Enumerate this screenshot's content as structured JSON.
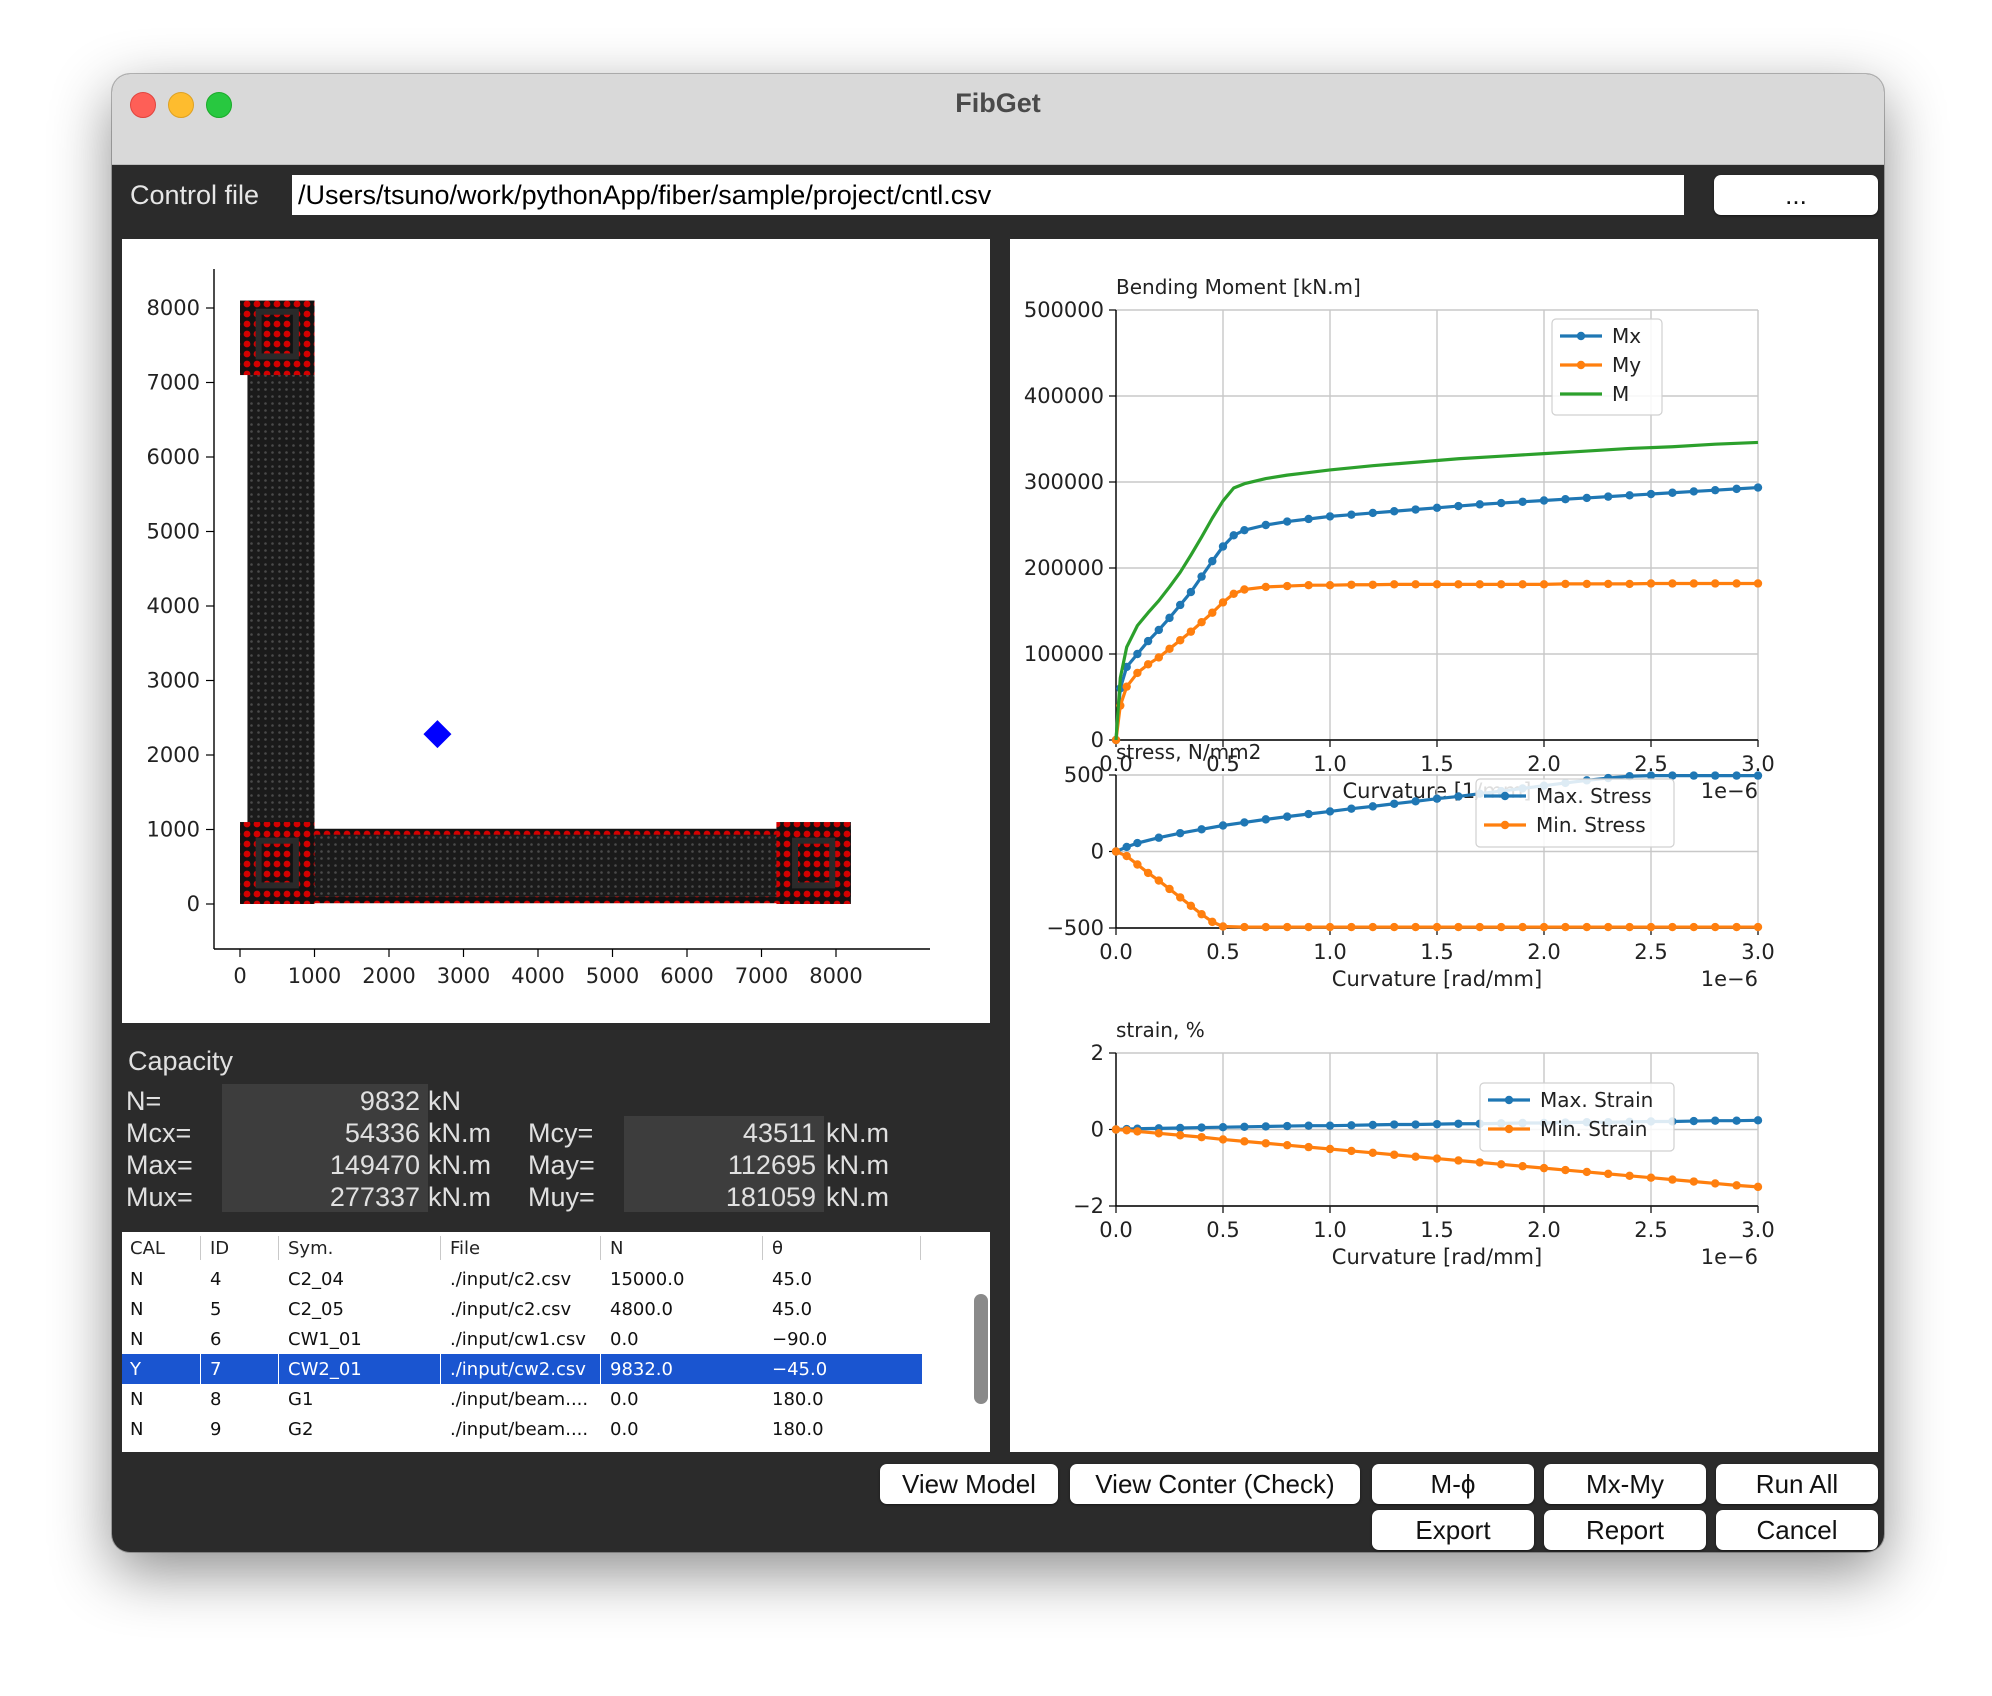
{
  "window": {
    "title": "FibGet"
  },
  "control": {
    "label": "Control file",
    "path": "/Users/tsuno/work/pythonApp/fiber/sample/project/cntl.csv",
    "browse_label": "..."
  },
  "model_plot": {
    "x_ticks": [
      "0",
      "1000",
      "2000",
      "3000",
      "4000",
      "5000",
      "6000",
      "7000",
      "8000"
    ],
    "y_ticks": [
      "0",
      "1000",
      "2000",
      "3000",
      "4000",
      "5000",
      "6000",
      "7000",
      "8000"
    ],
    "centroid": {
      "x": 2650,
      "y": 2280
    },
    "colors": {
      "concrete": "#111111",
      "rebar": "#d40000",
      "centroid": "#0000ff"
    }
  },
  "capacity": {
    "title": "Capacity",
    "n_label": "N=",
    "n_value": "9832",
    "n_unit": "kN",
    "mcx_label": "Mcx=",
    "mcx_value": "54336",
    "mcx_unit": "kN.m",
    "max_label": "Max=",
    "max_value": "149470",
    "max_unit": "kN.m",
    "mux_label": "Mux=",
    "mux_value": "277337",
    "mux_unit": "kN.m",
    "mcy_label": "Mcy=",
    "mcy_value": "43511",
    "mcy_unit": "kN.m",
    "may_label": "May=",
    "may_value": "112695",
    "may_unit": "kN.m",
    "muy_label": "Muy=",
    "muy_value": "181059",
    "muy_unit": "kN.m"
  },
  "table": {
    "headers": [
      "CAL",
      "ID",
      "Sym.",
      "File",
      "N",
      "θ"
    ],
    "rows": [
      [
        "N",
        "4",
        "C2_04",
        "./input/c2.csv",
        "15000.0",
        "45.0"
      ],
      [
        "N",
        "5",
        "C2_05",
        "./input/c2.csv",
        "4800.0",
        "45.0"
      ],
      [
        "N",
        "6",
        "CW1_01",
        "./input/cw1.csv",
        "0.0",
        "−90.0"
      ],
      [
        "Y",
        "7",
        "CW2_01",
        "./input/cw2.csv",
        "9832.0",
        "−45.0"
      ],
      [
        "N",
        "8",
        "G1",
        "./input/beam....",
        "0.0",
        "180.0"
      ],
      [
        "N",
        "9",
        "G2",
        "./input/beam....",
        "0.0",
        "180.0"
      ]
    ],
    "selected_index": 3
  },
  "buttons": {
    "view_model": "View Model",
    "view_conter": "View Conter (Check)",
    "m_phi": "M-ϕ",
    "mx_my": "Mx-My",
    "run_all": "Run All",
    "export": "Export",
    "report": "Report",
    "cancel": "Cancel"
  },
  "chart_data": [
    {
      "type": "line",
      "title": "Bending Moment [kN.m]",
      "xlabel": "Curvature [1/mm]",
      "x_offset_text": "1e−6",
      "xlim": [
        0,
        3.0
      ],
      "ylim": [
        0,
        500000
      ],
      "x_ticks": [
        "0.0",
        "0.5",
        "1.0",
        "1.5",
        "2.0",
        "2.5",
        "3.0"
      ],
      "y_ticks": [
        "0",
        "100000",
        "200000",
        "300000",
        "400000",
        "500000"
      ],
      "grid": true,
      "legend": "top-right",
      "series": [
        {
          "name": "Mx",
          "color": "#1f77b4",
          "markers": true,
          "x": [
            0,
            0.02,
            0.05,
            0.1,
            0.15,
            0.2,
            0.25,
            0.3,
            0.35,
            0.4,
            0.45,
            0.5,
            0.55,
            0.6,
            0.7,
            0.8,
            0.9,
            1.0,
            1.1,
            1.2,
            1.3,
            1.4,
            1.5,
            1.6,
            1.7,
            1.8,
            1.9,
            2.0,
            2.1,
            2.2,
            2.3,
            2.4,
            2.5,
            2.6,
            2.7,
            2.8,
            2.9,
            3.0
          ],
          "y": [
            0,
            60000,
            85000,
            100000,
            115000,
            128000,
            142000,
            157000,
            172000,
            190000,
            208000,
            225000,
            238000,
            244000,
            250000,
            254000,
            257000,
            260000,
            262000,
            264000,
            266000,
            268000,
            270000,
            272000,
            274000,
            275500,
            277000,
            278500,
            280000,
            281500,
            283000,
            284500,
            286000,
            287500,
            289000,
            290500,
            292000,
            293500
          ]
        },
        {
          "name": "My",
          "color": "#ff7f0e",
          "markers": true,
          "x": [
            0,
            0.02,
            0.05,
            0.1,
            0.15,
            0.2,
            0.25,
            0.3,
            0.35,
            0.4,
            0.45,
            0.5,
            0.55,
            0.6,
            0.7,
            0.8,
            0.9,
            1.0,
            1.1,
            1.2,
            1.3,
            1.4,
            1.5,
            1.6,
            1.7,
            1.8,
            1.9,
            2.0,
            2.1,
            2.2,
            2.3,
            2.4,
            2.5,
            2.6,
            2.7,
            2.8,
            2.9,
            3.0
          ],
          "y": [
            0,
            40000,
            62000,
            78000,
            88000,
            96000,
            106000,
            116000,
            126000,
            137000,
            148000,
            160000,
            170000,
            175000,
            178000,
            179000,
            180000,
            180000,
            180500,
            180500,
            181000,
            181000,
            181000,
            181000,
            181000,
            181000,
            181000,
            181000,
            181500,
            181500,
            181500,
            181500,
            182000,
            182000,
            182000,
            182000,
            182000,
            182000
          ]
        },
        {
          "name": "M",
          "color": "#2ca02c",
          "markers": false,
          "x": [
            0,
            0.02,
            0.05,
            0.1,
            0.15,
            0.2,
            0.25,
            0.3,
            0.35,
            0.4,
            0.45,
            0.5,
            0.55,
            0.6,
            0.7,
            0.8,
            0.9,
            1.0,
            1.2,
            1.4,
            1.6,
            1.8,
            2.0,
            2.2,
            2.4,
            2.6,
            2.8,
            3.0
          ],
          "y": [
            0,
            72000,
            108000,
            133000,
            148000,
            162000,
            178000,
            195000,
            215000,
            236000,
            258000,
            278000,
            293000,
            298000,
            304000,
            308000,
            311000,
            314000,
            319000,
            323000,
            327000,
            330000,
            333000,
            336000,
            339000,
            341000,
            344000,
            346000
          ]
        }
      ]
    },
    {
      "type": "line",
      "title": "stress, N/mm2",
      "xlabel": "Curvature [rad/mm]",
      "x_offset_text": "1e−6",
      "xlim": [
        0,
        3.0
      ],
      "ylim": [
        -500,
        500
      ],
      "x_ticks": [
        "0.0",
        "0.5",
        "1.0",
        "1.5",
        "2.0",
        "2.5",
        "3.0"
      ],
      "y_ticks": [
        "−500",
        "0",
        "500"
      ],
      "grid": true,
      "legend": "top-right",
      "series": [
        {
          "name": "Max. Stress",
          "color": "#1f77b4",
          "markers": true,
          "x": [
            0,
            0.05,
            0.1,
            0.2,
            0.3,
            0.4,
            0.5,
            0.6,
            0.7,
            0.8,
            0.9,
            1.0,
            1.1,
            1.2,
            1.3,
            1.4,
            1.5,
            1.6,
            1.7,
            1.8,
            1.9,
            2.0,
            2.1,
            2.2,
            2.3,
            2.4,
            2.5,
            2.6,
            2.7,
            2.8,
            2.9,
            3.0
          ],
          "y": [
            0,
            30,
            55,
            90,
            120,
            145,
            170,
            190,
            210,
            228,
            245,
            262,
            280,
            295,
            312,
            328,
            345,
            360,
            378,
            395,
            412,
            430,
            448,
            465,
            480,
            492,
            496,
            496,
            496,
            496,
            496,
            496
          ]
        },
        {
          "name": "Min. Stress",
          "color": "#ff7f0e",
          "markers": true,
          "x": [
            0,
            0.05,
            0.1,
            0.15,
            0.2,
            0.25,
            0.3,
            0.35,
            0.4,
            0.45,
            0.5,
            0.6,
            0.7,
            0.8,
            0.9,
            1.0,
            1.1,
            1.2,
            1.3,
            1.4,
            1.5,
            1.6,
            1.7,
            1.8,
            1.9,
            2.0,
            2.1,
            2.2,
            2.3,
            2.4,
            2.5,
            2.6,
            2.7,
            2.8,
            2.9,
            3.0
          ],
          "y": [
            0,
            -30,
            -85,
            -140,
            -190,
            -245,
            -300,
            -355,
            -410,
            -460,
            -490,
            -494,
            -494,
            -494,
            -494,
            -494,
            -494,
            -494,
            -494,
            -494,
            -494,
            -494,
            -494,
            -494,
            -494,
            -494,
            -494,
            -494,
            -494,
            -494,
            -494,
            -494,
            -494,
            -494,
            -494,
            -494
          ]
        }
      ]
    },
    {
      "type": "line",
      "title": "strain, %",
      "xlabel": "Curvature [rad/mm]",
      "x_offset_text": "1e−6",
      "xlim": [
        0,
        3.0
      ],
      "ylim": [
        -2,
        2
      ],
      "x_ticks": [
        "0.0",
        "0.5",
        "1.0",
        "1.5",
        "2.0",
        "2.5",
        "3.0"
      ],
      "y_ticks": [
        "−2",
        "0",
        "2"
      ],
      "grid": true,
      "legend": "top-right",
      "series": [
        {
          "name": "Max. Strain",
          "color": "#1f77b4",
          "markers": true,
          "x": [
            0,
            0.05,
            0.1,
            0.2,
            0.3,
            0.4,
            0.5,
            0.6,
            0.7,
            0.8,
            0.9,
            1.0,
            1.1,
            1.2,
            1.3,
            1.4,
            1.5,
            1.6,
            1.7,
            1.8,
            1.9,
            2.0,
            2.1,
            2.2,
            2.3,
            2.4,
            2.5,
            2.6,
            2.7,
            2.8,
            2.9,
            3.0
          ],
          "y": [
            0,
            0.01,
            0.02,
            0.03,
            0.04,
            0.05,
            0.06,
            0.07,
            0.08,
            0.09,
            0.1,
            0.1,
            0.11,
            0.12,
            0.13,
            0.13,
            0.14,
            0.15,
            0.15,
            0.16,
            0.17,
            0.17,
            0.18,
            0.19,
            0.19,
            0.2,
            0.21,
            0.21,
            0.22,
            0.23,
            0.23,
            0.24
          ]
        },
        {
          "name": "Min. Strain",
          "color": "#ff7f0e",
          "markers": true,
          "x": [
            0,
            0.05,
            0.1,
            0.2,
            0.3,
            0.4,
            0.5,
            0.6,
            0.7,
            0.8,
            0.9,
            1.0,
            1.1,
            1.2,
            1.3,
            1.4,
            1.5,
            1.6,
            1.7,
            1.8,
            1.9,
            2.0,
            2.1,
            2.2,
            2.3,
            2.4,
            2.5,
            2.6,
            2.7,
            2.8,
            2.9,
            3.0
          ],
          "y": [
            0,
            -0.02,
            -0.05,
            -0.1,
            -0.15,
            -0.2,
            -0.26,
            -0.31,
            -0.36,
            -0.41,
            -0.46,
            -0.51,
            -0.56,
            -0.61,
            -0.66,
            -0.71,
            -0.76,
            -0.81,
            -0.86,
            -0.91,
            -0.96,
            -1.01,
            -1.06,
            -1.11,
            -1.16,
            -1.21,
            -1.26,
            -1.31,
            -1.36,
            -1.41,
            -1.46,
            -1.5
          ]
        }
      ]
    }
  ]
}
